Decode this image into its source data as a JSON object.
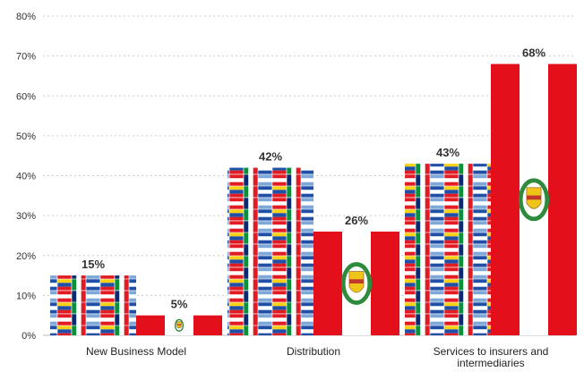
{
  "chart_data": {
    "type": "bar",
    "categories": [
      "New Business Model",
      "Distribution",
      "Services to insurers and intermediaries"
    ],
    "category_label_lines": [
      [
        "New Business Model"
      ],
      [
        "Distribution"
      ],
      [
        "Services to insurers and",
        "intermediaries"
      ]
    ],
    "series": [
      {
        "values": [
          15,
          42,
          43
        ],
        "style": "latin-america-flags-pattern"
      },
      {
        "values": [
          5,
          26,
          68
        ],
        "style": "peru-flag"
      }
    ],
    "value_labels": [
      [
        "15%",
        "42%",
        "43%"
      ],
      [
        "5%",
        "26%",
        "68%"
      ]
    ],
    "title": "",
    "xlabel": "",
    "ylabel": "",
    "ylim": [
      0,
      80
    ],
    "yticks": [
      0,
      10,
      20,
      30,
      40,
      50,
      60,
      70,
      80
    ],
    "ytick_labels": [
      "0%",
      "10%",
      "20%",
      "30%",
      "40%",
      "50%",
      "60%",
      "70%",
      "80%"
    ],
    "grid": true,
    "legend": "none",
    "colors": {
      "peru_red": "#e3101b",
      "grid": "#cccccc",
      "flag_palette": [
        "#1f4fa6",
        "#ffffff",
        "#e21b23",
        "#f7d117",
        "#0a8f3c",
        "#7ea8d8",
        "#0e2a6b"
      ]
    }
  }
}
